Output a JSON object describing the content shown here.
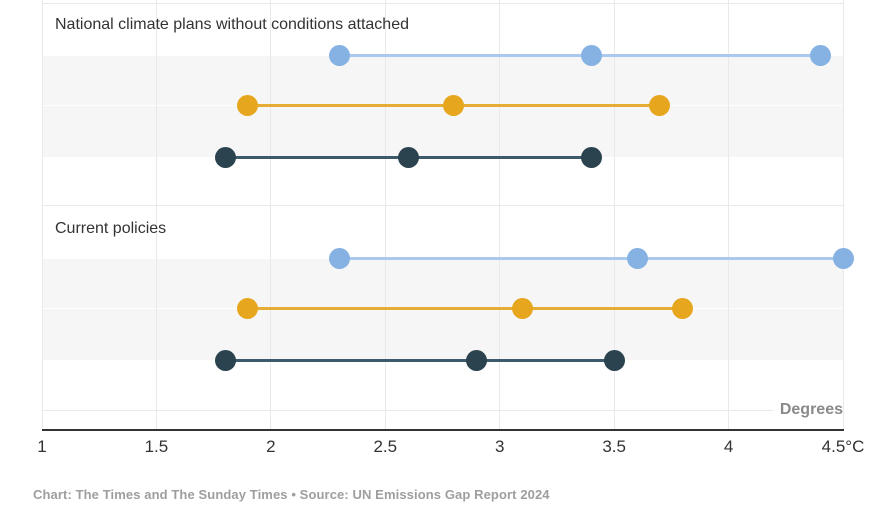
{
  "chart_data": {
    "type": "scatter",
    "subtype": "dot-range-plot",
    "axis_unit_label": "Degrees",
    "x_axis": {
      "range": [
        1,
        4.5
      ],
      "tick_values": [
        1,
        1.5,
        2,
        2.5,
        3,
        3.5,
        4,
        4.5
      ],
      "tick_labels": [
        "1",
        "1.5",
        "2",
        "2.5",
        "3",
        "3.5",
        "4",
        "4.5°C"
      ]
    },
    "colors": {
      "light_blue_dot": "#85b1e3",
      "light_blue_line": "#abc9ec",
      "yellow_dot": "#e6a71e",
      "yellow_line": "#e5ad33",
      "dark_navy_dot": "#2b424f",
      "dark_navy_line": "#3c5a6c",
      "band": "#f6f6f6",
      "gridline": "#e9e9e9",
      "axis": "#333333"
    },
    "groups": [
      {
        "label": "National climate plans without conditions attached",
        "series": [
          {
            "name": "light-blue",
            "dot_color": "#85b1e3",
            "line_color": "#abc9ec",
            "values": [
              2.3,
              3.4,
              4.4
            ]
          },
          {
            "name": "yellow",
            "dot_color": "#e6a71e",
            "line_color": "#e5ad33",
            "values": [
              1.9,
              2.8,
              3.7
            ]
          },
          {
            "name": "dark-navy",
            "dot_color": "#2b424f",
            "line_color": "#3c5a6c",
            "values": [
              1.8,
              2.6,
              3.4
            ]
          }
        ]
      },
      {
        "label": "Current policies",
        "series": [
          {
            "name": "light-blue",
            "dot_color": "#85b1e3",
            "line_color": "#abc9ec",
            "values": [
              2.3,
              3.6,
              4.5
            ]
          },
          {
            "name": "yellow",
            "dot_color": "#e6a71e",
            "line_color": "#e5ad33",
            "values": [
              1.9,
              3.1,
              3.8
            ]
          },
          {
            "name": "dark-navy",
            "dot_color": "#2b424f",
            "line_color": "#3c5a6c",
            "values": [
              1.8,
              2.9,
              3.5
            ]
          }
        ]
      }
    ]
  },
  "footer": {
    "credit": "Chart: The Times and The Sunday Times • Source: UN Emissions Gap Report 2024"
  }
}
